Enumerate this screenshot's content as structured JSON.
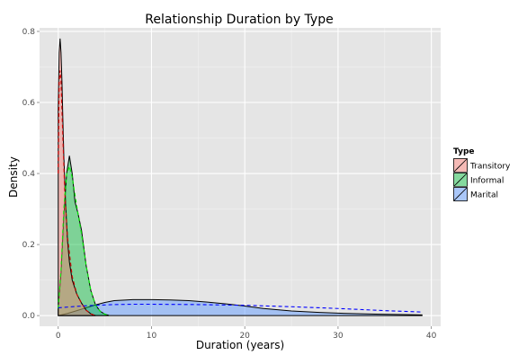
{
  "chart_data": {
    "type": "area",
    "title": "Relationship Duration by Type",
    "xlabel": "Duration (years)",
    "ylabel": "Density",
    "xlim": [
      -2,
      41
    ],
    "ylim": [
      -0.03,
      0.81
    ],
    "x_ticks": [
      0,
      10,
      20,
      30,
      40
    ],
    "y_ticks": [
      0.0,
      0.2,
      0.4,
      0.6,
      0.8
    ],
    "x_tick_labels": [
      "0",
      "10",
      "20",
      "30",
      "40"
    ],
    "y_tick_labels": [
      "0.0",
      "0.2",
      "0.4",
      "0.6",
      "0.8"
    ],
    "grid": true,
    "legend": {
      "title": "Type",
      "position": "right",
      "entries": [
        "Transitory",
        "Informal",
        "Marital"
      ]
    },
    "series": [
      {
        "name": "Transitory",
        "fill": "#f8766d",
        "fill_opacity": 0.45,
        "density": {
          "x": [
            0,
            0.1,
            0.2,
            0.3,
            0.4,
            0.5,
            0.6,
            0.8,
            1.0,
            1.2,
            1.5,
            2.0,
            2.5,
            3.0,
            3.5,
            4.0
          ],
          "y": [
            0.58,
            0.74,
            0.78,
            0.74,
            0.66,
            0.55,
            0.45,
            0.31,
            0.21,
            0.15,
            0.1,
            0.06,
            0.035,
            0.015,
            0.005,
            0.0
          ]
        },
        "reference_curve": {
          "color": "#cc0000",
          "x": [
            0,
            0.1,
            0.2,
            0.3,
            0.4,
            0.5,
            0.7,
            1.0,
            1.5,
            2.0,
            2.5,
            3.0,
            3.5,
            4.0
          ],
          "y": [
            0.4,
            0.66,
            0.69,
            0.66,
            0.58,
            0.5,
            0.35,
            0.22,
            0.11,
            0.06,
            0.035,
            0.015,
            0.005,
            0.0
          ]
        }
      },
      {
        "name": "Informal",
        "fill": "#00ba38",
        "fill_opacity": 0.45,
        "density": {
          "x": [
            0,
            0.3,
            0.6,
            0.9,
            1.2,
            1.5,
            1.8,
            2.1,
            2.5,
            3.0,
            3.5,
            4.0,
            4.5,
            5.0,
            5.5
          ],
          "y": [
            0.02,
            0.12,
            0.28,
            0.4,
            0.45,
            0.4,
            0.32,
            0.29,
            0.24,
            0.14,
            0.07,
            0.03,
            0.012,
            0.004,
            0.0
          ]
        },
        "reference_curve": {
          "color": "#00ee00",
          "x": [
            0,
            0.3,
            0.6,
            0.9,
            1.2,
            1.5,
            1.8,
            2.1,
            2.5,
            3.0,
            3.5,
            4.0,
            4.5,
            5.0,
            5.5
          ],
          "y": [
            0.02,
            0.13,
            0.3,
            0.4,
            0.42,
            0.39,
            0.34,
            0.29,
            0.23,
            0.14,
            0.07,
            0.03,
            0.012,
            0.004,
            0.0
          ]
        }
      },
      {
        "name": "Marital",
        "fill": "#619cff",
        "fill_opacity": 0.5,
        "density": {
          "x": [
            0,
            1,
            2,
            3,
            4,
            5,
            6,
            8,
            10,
            12,
            14,
            16,
            18,
            20,
            22,
            25,
            28,
            31,
            34,
            37,
            39
          ],
          "y": [
            0.0,
            0.006,
            0.014,
            0.022,
            0.03,
            0.037,
            0.042,
            0.045,
            0.045,
            0.044,
            0.042,
            0.038,
            0.033,
            0.027,
            0.02,
            0.013,
            0.009,
            0.006,
            0.004,
            0.003,
            0.002
          ]
        },
        "reference_curve": {
          "color": "#0000ff",
          "x": [
            0,
            2,
            4,
            6,
            8,
            10,
            15,
            20,
            25,
            30,
            35,
            39
          ],
          "y": [
            0.022,
            0.026,
            0.029,
            0.031,
            0.032,
            0.032,
            0.031,
            0.029,
            0.025,
            0.02,
            0.014,
            0.01
          ]
        }
      }
    ]
  }
}
